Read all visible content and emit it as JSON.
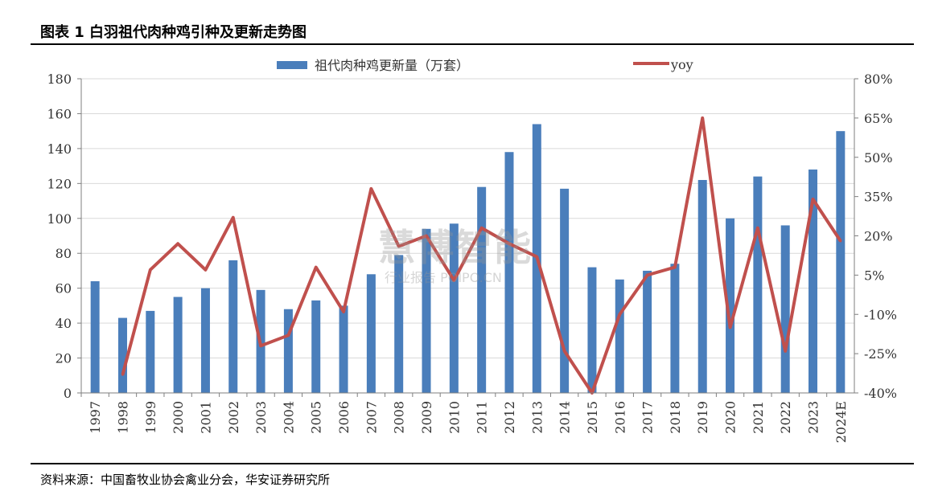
{
  "figure_title": "图表 1 白羽祖代肉种鸡引种及更新走势图",
  "source": "资料来源：中国畜牧业协会禽业分会，华安证券研究所",
  "watermark": {
    "main": "慧博智能",
    "sub": "行业报告 POIPO.CN"
  },
  "colors": {
    "bar": "#4a7ebb",
    "line": "#c0504d",
    "grid": "#d9d9d9",
    "axis": "#7f7f7f"
  },
  "chart_data": {
    "type": "bar",
    "categories": [
      "1997",
      "1998",
      "1999",
      "2000",
      "2001",
      "2002",
      "2003",
      "2004",
      "2005",
      "2006",
      "2007",
      "2008",
      "2009",
      "2010",
      "2011",
      "2012",
      "2013",
      "2014",
      "2015",
      "2016",
      "2017",
      "2018",
      "2019",
      "2020",
      "2021",
      "2022",
      "2023",
      "2024E"
    ],
    "series": [
      {
        "name": "祖代肉种鸡更新量（万套）",
        "type": "bar",
        "axis": "left",
        "values": [
          64,
          43,
          47,
          55,
          60,
          76,
          59,
          48,
          53,
          50,
          68,
          79,
          94,
          97,
          118,
          138,
          154,
          117,
          72,
          65,
          70,
          74,
          122,
          100,
          124,
          96,
          128,
          150
        ]
      },
      {
        "name": "yoy",
        "type": "line",
        "axis": "right",
        "values": [
          null,
          -33,
          7,
          17,
          7,
          27,
          -22,
          -18,
          8,
          -9,
          38,
          16,
          20,
          3,
          23,
          17,
          12,
          -24,
          -40,
          -10,
          5,
          8,
          65,
          -15,
          23,
          -24,
          34,
          18
        ]
      }
    ],
    "y_left": {
      "min": 0,
      "max": 180,
      "step": 20,
      "ticks": [
        "0",
        "20",
        "40",
        "60",
        "80",
        "100",
        "120",
        "140",
        "160",
        "180"
      ]
    },
    "y_right": {
      "min": -40,
      "max": 80,
      "step": 15,
      "ticks": [
        "-40%",
        "-25%",
        "-10%",
        "5%",
        "20%",
        "35%",
        "50%",
        "65%",
        "80%"
      ]
    },
    "legend": {
      "placement": "top-center",
      "items": [
        "祖代肉种鸡更新量（万套）",
        "yoy"
      ]
    },
    "grid": true
  }
}
